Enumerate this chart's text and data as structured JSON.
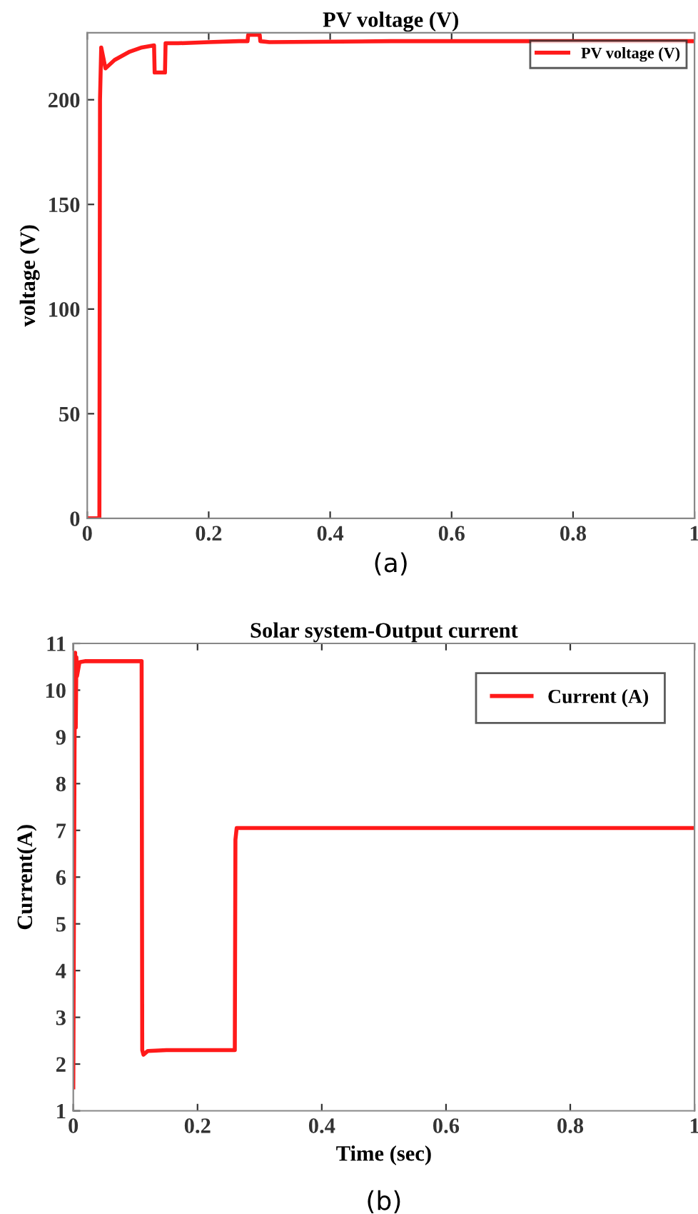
{
  "chart_data": [
    {
      "type": "line",
      "title": "PV voltage (V)",
      "ylabel": "voltage (V)",
      "annotations": [
        "(a)"
      ],
      "legend": "top right",
      "grid": false,
      "xlim": [
        0,
        1
      ],
      "xticks": [
        0,
        0.2,
        0.4,
        0.6,
        0.8,
        1
      ],
      "ylim": [
        0,
        232
      ],
      "yticks": [
        0,
        50,
        100,
        150,
        200
      ],
      "series": [
        {
          "name": "PV voltage (V)",
          "color": "#ff1a1a",
          "x": [
            0,
            0.02,
            0.021,
            0.023,
            0.03,
            0.045,
            0.07,
            0.09,
            0.11,
            0.111,
            0.128,
            0.129,
            0.15,
            0.2,
            0.25,
            0.264,
            0.265,
            0.284,
            0.285,
            0.3,
            0.5,
            0.8,
            1
          ],
          "values": [
            0,
            0,
            200,
            225,
            215,
            219,
            223,
            225,
            226,
            213,
            213,
            227,
            227,
            227.5,
            228,
            228,
            231,
            231,
            228,
            227.5,
            228,
            228,
            228
          ]
        }
      ]
    },
    {
      "type": "line",
      "title": "Solar system-Output current",
      "xlabel": "Time (sec)",
      "ylabel": "Current(A)",
      "annotations": [
        "(b)"
      ],
      "legend": "top right",
      "grid": false,
      "xlim": [
        0,
        1
      ],
      "xticks": [
        0,
        0.2,
        0.4,
        0.6,
        0.8,
        1
      ],
      "ylim": [
        1,
        11
      ],
      "yticks": [
        1,
        2,
        3,
        4,
        5,
        6,
        7,
        8,
        9,
        10,
        11
      ],
      "series": [
        {
          "name": "Current (A)",
          "color": "#ff1a1a",
          "x": [
            0,
            0.002,
            0.003,
            0.004,
            0.005,
            0.006,
            0.01,
            0.02,
            0.11,
            0.111,
            0.113,
            0.12,
            0.15,
            0.26,
            0.261,
            0.263,
            0.27,
            0.4,
            1
          ],
          "values": [
            1.5,
            8.7,
            10.8,
            9.2,
            10.7,
            10.3,
            10.6,
            10.62,
            10.62,
            2.3,
            2.2,
            2.28,
            2.3,
            2.3,
            6.8,
            7.05,
            7.05,
            7.05,
            7.05
          ]
        }
      ]
    }
  ]
}
